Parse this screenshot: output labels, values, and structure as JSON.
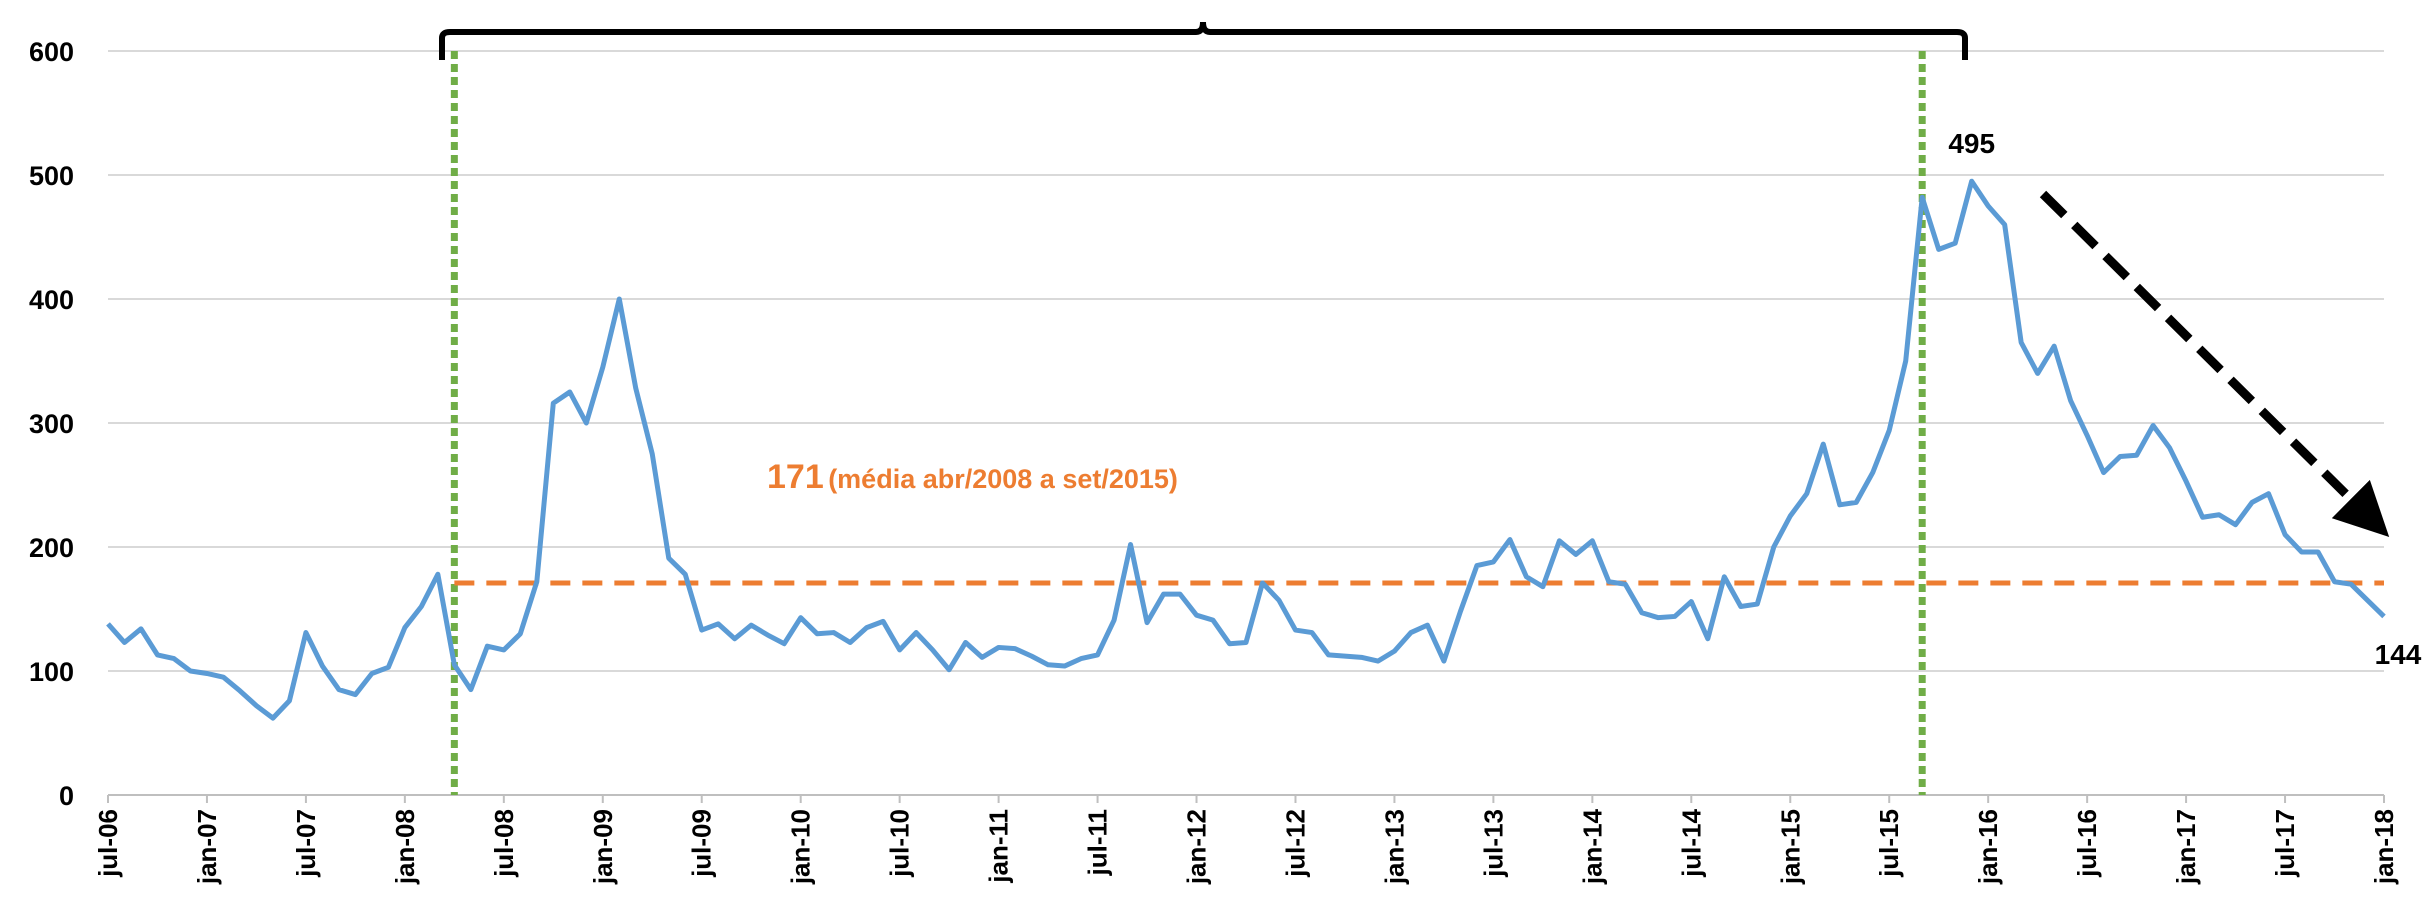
{
  "chart_data": {
    "type": "line",
    "categories": [
      "jul-06",
      null,
      null,
      null,
      null,
      null,
      "jan-07",
      null,
      null,
      null,
      null,
      null,
      "jul-07",
      null,
      null,
      null,
      null,
      null,
      "jan-08",
      null,
      null,
      null,
      null,
      null,
      "jul-08",
      null,
      null,
      null,
      null,
      null,
      "jan-09",
      null,
      null,
      null,
      null,
      null,
      "jul-09",
      null,
      null,
      null,
      null,
      null,
      "jan-10",
      null,
      null,
      null,
      null,
      null,
      "jul-10",
      null,
      null,
      null,
      null,
      null,
      "jan-11",
      null,
      null,
      null,
      null,
      null,
      "jul-11",
      null,
      null,
      null,
      null,
      null,
      "jan-12",
      null,
      null,
      null,
      null,
      null,
      "jul-12",
      null,
      null,
      null,
      null,
      null,
      "jan-13",
      null,
      null,
      null,
      null,
      null,
      "jul-13",
      null,
      null,
      null,
      null,
      null,
      "jan-14",
      null,
      null,
      null,
      null,
      null,
      "jul-14",
      null,
      null,
      null,
      null,
      null,
      "jan-15",
      null,
      null,
      null,
      null,
      null,
      "jul-15",
      null,
      null,
      null,
      null,
      null,
      "jan-16",
      null,
      null,
      null,
      null,
      null,
      "jul-16",
      null,
      null,
      null,
      null,
      null,
      "jan-17",
      null,
      null,
      null,
      null,
      null,
      "jul-17",
      null,
      null,
      null,
      null,
      null,
      "jan-18"
    ],
    "series": [
      {
        "color": "#5b9bd5",
        "values": [
          138,
          123,
          134,
          113,
          110,
          100,
          98,
          95,
          84,
          72,
          62,
          76,
          131,
          104,
          85,
          81,
          98,
          103,
          135,
          152,
          178,
          105,
          85,
          120,
          117,
          130,
          172,
          316,
          325,
          300,
          345,
          400,
          328,
          275,
          191,
          178,
          133,
          138,
          126,
          137,
          129,
          122,
          143,
          130,
          131,
          123,
          135,
          140,
          117,
          131,
          117,
          101,
          123,
          111,
          119,
          118,
          112,
          105,
          104,
          110,
          113,
          141,
          202,
          139,
          162,
          162,
          145,
          141,
          122,
          123,
          171,
          157,
          133,
          131,
          113,
          112,
          111,
          108,
          116,
          131,
          137,
          108,
          148,
          185,
          188,
          206,
          176,
          168,
          205,
          194,
          205,
          172,
          170,
          147,
          143,
          144,
          156,
          126,
          176,
          152,
          154,
          200,
          225,
          243,
          283,
          234,
          236,
          260,
          294,
          350,
          482,
          440,
          445,
          495,
          475,
          460,
          365,
          340,
          362,
          318,
          290,
          260,
          273,
          274,
          298,
          280,
          253,
          224,
          226,
          218,
          236,
          243,
          210,
          196,
          196,
          172,
          170,
          157,
          144
        ]
      }
    ],
    "average": {
      "value": 171,
      "note": "(média abr/2008 a set/2015)",
      "color": "#ed7d31"
    },
    "ylim": [
      0,
      600
    ],
    "yticks": [
      0,
      100,
      200,
      300,
      400,
      500,
      600
    ],
    "grid": true
  }
}
